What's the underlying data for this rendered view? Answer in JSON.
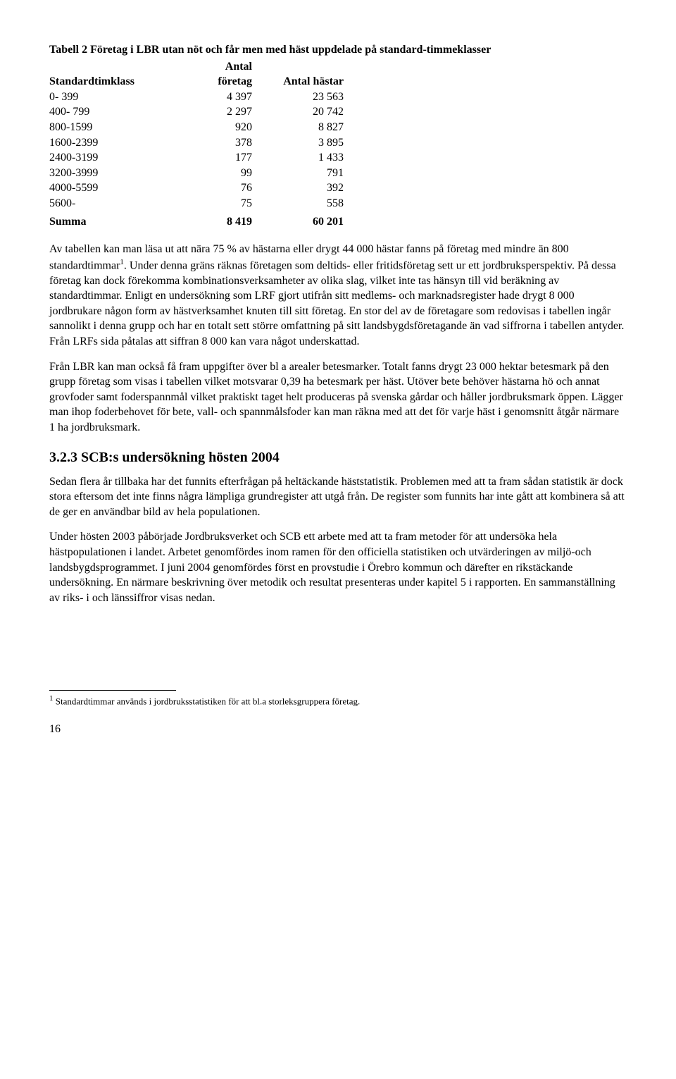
{
  "table": {
    "title": "Tabell 2 Företag i LBR utan nöt och får men med häst uppdelade på standard-timmeklasser",
    "columns": [
      "Standardtimklass",
      "Antal företag",
      "Antal hästar"
    ],
    "rows": [
      {
        "class": "0- 399",
        "foretag": "4 397",
        "hastar": "23 563"
      },
      {
        "class": "400- 799",
        "foretag": "2 297",
        "hastar": "20 742"
      },
      {
        "class": "800-1599",
        "foretag": "920",
        "hastar": "8 827"
      },
      {
        "class": "1600-2399",
        "foretag": "378",
        "hastar": "3 895"
      },
      {
        "class": "2400-3199",
        "foretag": "177",
        "hastar": "1 433"
      },
      {
        "class": "3200-3999",
        "foretag": "99",
        "hastar": "791"
      },
      {
        "class": "4000-5599",
        "foretag": "76",
        "hastar": "392"
      },
      {
        "class": "5600-",
        "foretag": "75",
        "hastar": "558"
      }
    ],
    "sum": {
      "label": "Summa",
      "foretag": "8 419",
      "hastar": "60 201"
    }
  },
  "para1": "Av tabellen kan man läsa ut att nära 75 % av hästarna eller drygt 44 000 hästar fanns på företag med mindre än 800 standardtimmar",
  "para1_sup": "1",
  "para1_cont": ". Under denna gräns räknas företagen som deltids- eller fritidsföretag sett ur ett jordbruksperspektiv. På dessa företag kan dock förekomma kombinationsverksamheter av olika slag, vilket inte tas hänsyn till vid beräkning av standardtimmar. Enligt en undersökning som LRF gjort utifrån sitt medlems- och marknadsregister hade drygt 8 000 jordbrukare någon form av hästverksamhet knuten till sitt företag. En stor del av de företagare som redovisas i tabellen ingår sannolikt i denna grupp och har en totalt sett större omfattning på sitt landsbygdsföretagande än vad siffrorna i tabellen antyder.  Från LRFs sida påtalas att siffran 8 000 kan vara något underskattad.",
  "para2": "Från LBR kan man också få fram uppgifter över bl a arealer betesmarker. Totalt fanns drygt 23 000 hektar betesmark på den grupp företag som visas i tabellen vilket motsvarar 0,39 ha betesmark per häst. Utöver bete behöver hästarna hö och annat grovfoder samt foderspannmål vilket praktiskt taget helt produceras på svenska gårdar och håller jordbruksmark öppen. Lägger man ihop foderbehovet för bete, vall- och spannmålsfoder kan man räkna med att det för varje häst i genomsnitt åtgår närmare 1 ha jordbruksmark.",
  "heading": "3.2.3  SCB:s undersökning hösten 2004",
  "para3": "Sedan flera år tillbaka har det funnits efterfrågan på heltäckande häststatistik. Problemen med att ta fram sådan statistik är dock stora eftersom det inte finns några lämpliga grundregister att utgå från. De register som funnits har inte gått att kombinera så att de ger en användbar bild av hela populationen.",
  "para4": "Under hösten 2003 påbörjade Jordbruksverket och SCB ett arbete med att ta fram metoder för att undersöka hela hästpopulationen i landet. Arbetet genomfördes inom ramen för den officiella statistiken och utvärderingen av miljö-och landsbygdsprogrammet. I juni 2004 genomfördes först en provstudie i Örebro kommun och därefter en rikstäckande undersökning. En närmare beskrivning över metodik och resultat presenteras under kapitel 5 i rapporten. En sammanställning av riks- i och länssiffror visas nedan.",
  "footnote": " Standardtimmar används i jordbruksstatistiken för att bl.a storleksgruppera företag.",
  "footnote_sup": "1",
  "page_number": "16"
}
